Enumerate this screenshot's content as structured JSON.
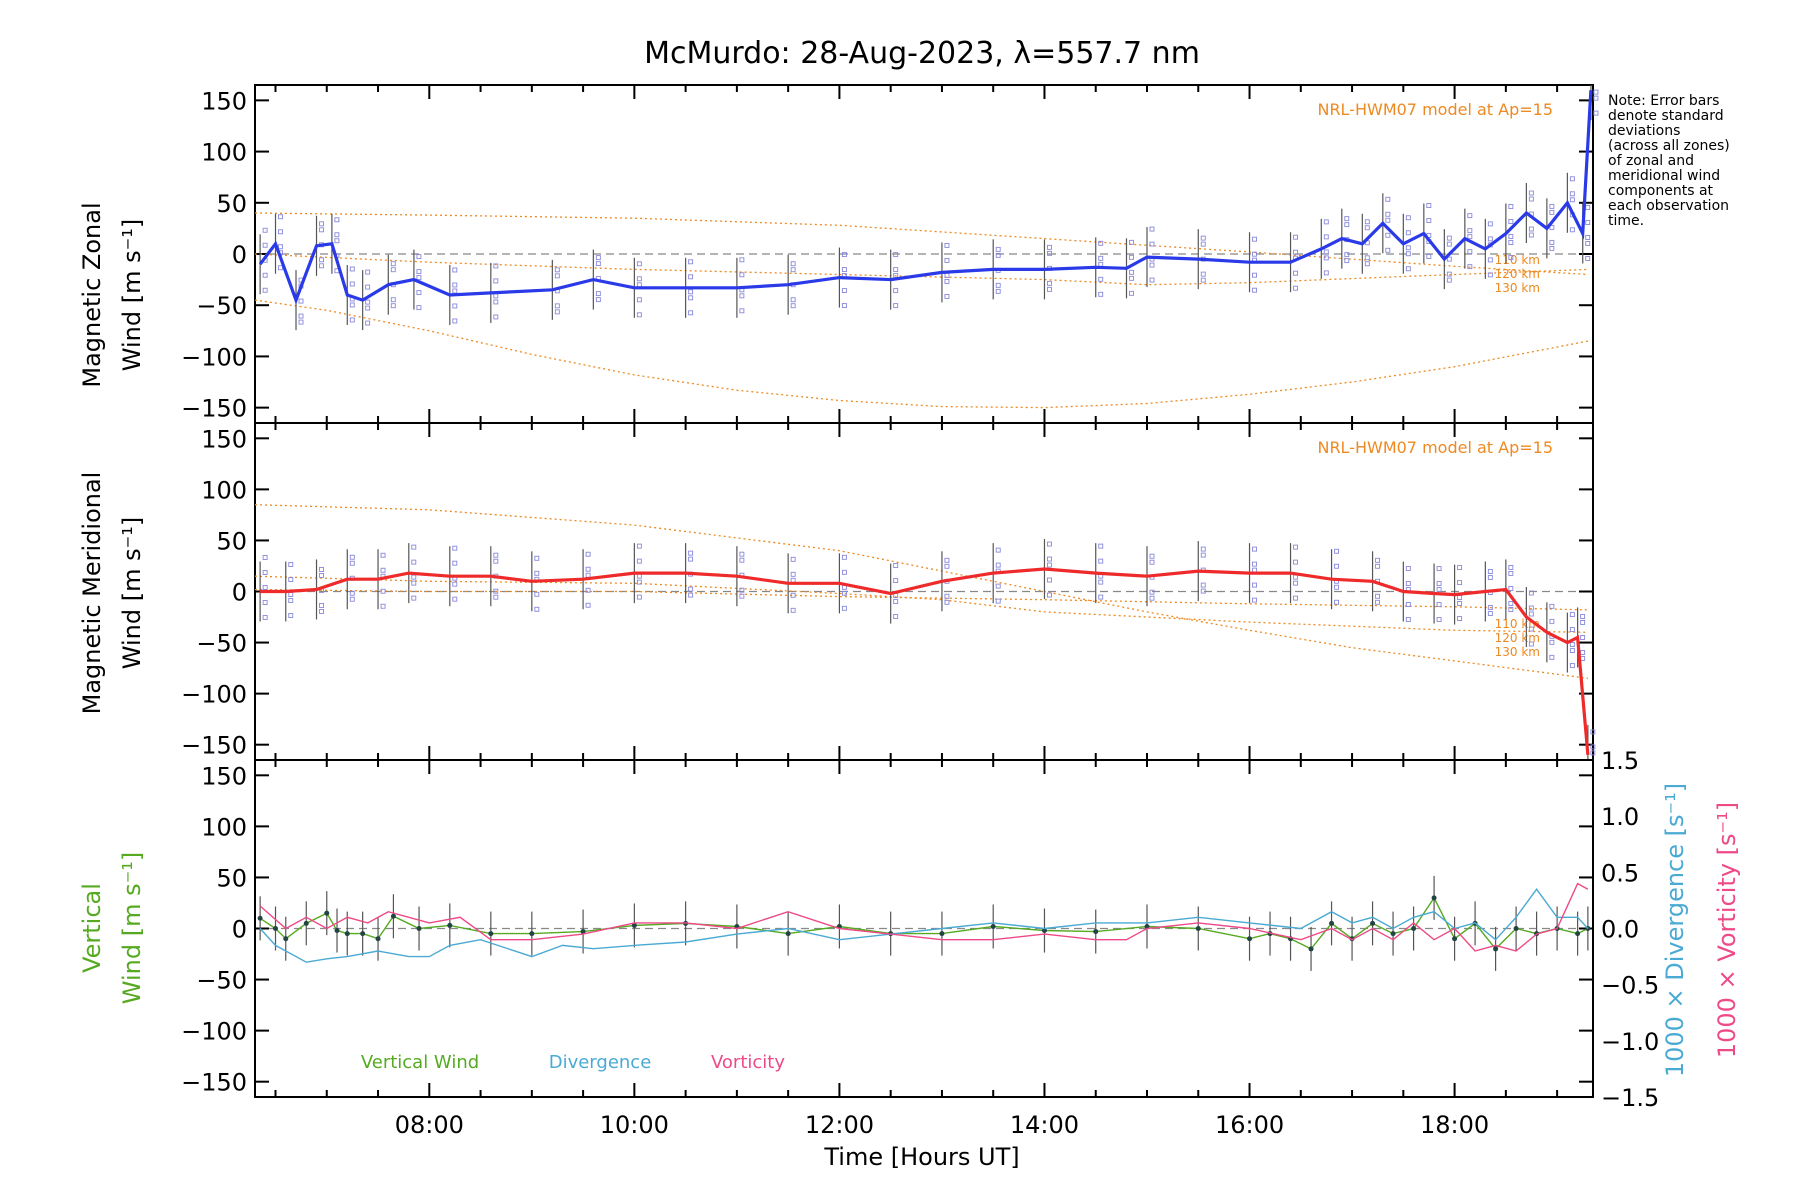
{
  "chart_data": [
    {
      "id": "zonal",
      "type": "line",
      "title": "McMurdo: 28-Aug-2023, λ=557.7 nm",
      "ylabel_line1": "Magnetic Zonal",
      "ylabel_line2": "Wind [m s⁻¹]",
      "ylim": [
        -165,
        165
      ],
      "yticks": [
        150,
        100,
        50,
        0,
        -50,
        -100,
        -150
      ],
      "model_label": "NRL-HWM07 model at Ap=15",
      "model_altitudes": [
        "110 km",
        "120 km",
        "130 km"
      ],
      "color": "#2a3ae8",
      "series": [
        {
          "name": "Magnetic Zonal Wind",
          "x": [
            6.35,
            6.5,
            6.7,
            6.9,
            7.05,
            7.2,
            7.35,
            7.6,
            7.85,
            8.2,
            8.6,
            9.2,
            9.6,
            10.0,
            10.5,
            11.0,
            11.5,
            12.0,
            12.5,
            13.0,
            13.5,
            14.0,
            14.5,
            14.8,
            15.0,
            15.5,
            16.0,
            16.4,
            16.7,
            16.9,
            17.1,
            17.3,
            17.5,
            17.7,
            17.9,
            18.1,
            18.3,
            18.5,
            18.7,
            18.9,
            19.1,
            19.25,
            19.33
          ],
          "y": [
            -10,
            10,
            -45,
            8,
            10,
            -40,
            -45,
            -30,
            -25,
            -40,
            -38,
            -35,
            -25,
            -33,
            -33,
            -33,
            -30,
            -23,
            -25,
            -18,
            -15,
            -15,
            -13,
            -14,
            -3,
            -5,
            -8,
            -8,
            5,
            15,
            10,
            30,
            10,
            20,
            -5,
            15,
            5,
            20,
            40,
            25,
            50,
            20,
            160
          ]
        }
      ]
    },
    {
      "id": "meridional",
      "type": "line",
      "ylabel_line1": "Magnetic Meridional",
      "ylabel_line2": "Wind [m s⁻¹]",
      "ylim": [
        -165,
        165
      ],
      "yticks": [
        150,
        100,
        50,
        0,
        -50,
        -100,
        -150
      ],
      "model_label": "NRL-HWM07 model at Ap=15",
      "model_altitudes": [
        "110 km",
        "120 km",
        "130 km"
      ],
      "color": "#ee2a2a",
      "series": [
        {
          "name": "Magnetic Meridional Wind",
          "x": [
            6.35,
            6.6,
            6.9,
            7.2,
            7.5,
            7.8,
            8.2,
            8.6,
            9.0,
            9.5,
            10.0,
            10.5,
            11.0,
            11.5,
            12.0,
            12.5,
            13.0,
            13.5,
            14.0,
            14.5,
            15.0,
            15.5,
            16.0,
            16.4,
            16.8,
            17.2,
            17.5,
            17.8,
            18.0,
            18.3,
            18.5,
            18.7,
            18.9,
            19.1,
            19.2,
            19.3
          ],
          "y": [
            0,
            0,
            2,
            12,
            12,
            18,
            15,
            15,
            10,
            12,
            18,
            18,
            15,
            8,
            8,
            -2,
            10,
            18,
            22,
            18,
            15,
            20,
            18,
            18,
            12,
            10,
            0,
            -2,
            -3,
            0,
            2,
            -25,
            -40,
            -50,
            -45,
            -160
          ]
        }
      ]
    },
    {
      "id": "vertical",
      "type": "line",
      "ylabel_line1": "Vertical",
      "ylabel_line2": "Wind [m s⁻¹]",
      "ylim": [
        -165,
        165
      ],
      "yticks": [
        150,
        100,
        50,
        0,
        -50,
        -100,
        -150
      ],
      "y2label_1": "1000 × Divergence [s⁻¹]",
      "y2label_2": "1000 × Vorticity [s⁻¹]",
      "y2lim": [
        -1.5,
        1.5
      ],
      "y2ticks": [
        1.5,
        1.0,
        0.5,
        0.0,
        -0.5,
        -1.0,
        -1.5
      ],
      "legend": [
        "Vertical Wind",
        "Divergence",
        "Vorticity"
      ],
      "series": [
        {
          "name": "Vertical Wind",
          "color": "#55aa22",
          "x": [
            6.35,
            6.5,
            6.6,
            6.8,
            7.0,
            7.1,
            7.2,
            7.35,
            7.5,
            7.65,
            7.9,
            8.2,
            8.6,
            9.0,
            9.5,
            10.0,
            10.5,
            11.0,
            11.5,
            12.0,
            12.5,
            13.0,
            13.5,
            14.0,
            14.5,
            15.0,
            15.5,
            16.0,
            16.2,
            16.4,
            16.6,
            16.8,
            17.0,
            17.2,
            17.4,
            17.6,
            17.8,
            18.0,
            18.2,
            18.4,
            18.6,
            18.8,
            19.0,
            19.2,
            19.3
          ],
          "y": [
            10,
            0,
            -10,
            5,
            15,
            -2,
            -5,
            -5,
            -10,
            12,
            0,
            3,
            -5,
            -5,
            -3,
            3,
            5,
            2,
            -5,
            2,
            -5,
            -5,
            2,
            -2,
            -3,
            2,
            0,
            -10,
            -5,
            -10,
            -20,
            5,
            -10,
            5,
            -5,
            0,
            30,
            -10,
            5,
            -20,
            0,
            -5,
            0,
            -5,
            0
          ]
        },
        {
          "name": "Divergence",
          "color": "#4aaad4",
          "x": [
            6.35,
            6.5,
            6.6,
            6.8,
            7.0,
            7.2,
            7.5,
            7.8,
            8.0,
            8.2,
            8.5,
            9.0,
            9.3,
            9.6,
            10.0,
            10.5,
            11.0,
            11.5,
            12.0,
            12.5,
            13.0,
            13.5,
            14.0,
            14.5,
            15.0,
            15.5,
            16.0,
            16.5,
            16.8,
            17.0,
            17.2,
            17.4,
            17.6,
            17.8,
            18.0,
            18.2,
            18.4,
            18.6,
            18.8,
            19.0,
            19.2,
            19.3
          ],
          "y": [
            0.0,
            -0.15,
            -0.2,
            -0.3,
            -0.27,
            -0.25,
            -0.2,
            -0.25,
            -0.25,
            -0.15,
            -0.1,
            -0.25,
            -0.15,
            -0.18,
            -0.15,
            -0.12,
            -0.05,
            0.0,
            -0.1,
            -0.05,
            0.0,
            0.05,
            0.0,
            0.05,
            0.05,
            0.1,
            0.05,
            0.0,
            0.15,
            0.05,
            0.1,
            0.0,
            0.1,
            0.15,
            0.0,
            0.05,
            -0.1,
            0.1,
            0.35,
            0.1,
            0.1,
            0.0
          ]
        },
        {
          "name": "Vorticity",
          "color": "#ee4a88",
          "x": [
            6.35,
            6.6,
            6.8,
            7.0,
            7.2,
            7.4,
            7.6,
            7.8,
            8.0,
            8.3,
            8.6,
            9.0,
            9.5,
            10.0,
            10.5,
            11.0,
            11.5,
            12.0,
            12.5,
            13.0,
            13.5,
            14.0,
            14.5,
            14.8,
            15.0,
            15.5,
            16.0,
            16.5,
            16.8,
            17.0,
            17.2,
            17.4,
            17.6,
            17.8,
            18.0,
            18.2,
            18.4,
            18.6,
            18.8,
            19.0,
            19.2,
            19.3
          ],
          "y": [
            0.2,
            0.0,
            0.1,
            0.0,
            0.1,
            0.05,
            0.15,
            0.1,
            0.05,
            0.1,
            -0.1,
            -0.1,
            -0.05,
            0.05,
            0.05,
            0.0,
            0.15,
            0.0,
            -0.05,
            -0.1,
            -0.1,
            -0.05,
            -0.1,
            -0.1,
            0.0,
            0.05,
            0.0,
            -0.1,
            0.0,
            -0.1,
            0.0,
            -0.1,
            0.05,
            -0.1,
            0.0,
            -0.2,
            -0.15,
            -0.2,
            -0.05,
            0.0,
            0.4,
            0.35
          ]
        }
      ]
    }
  ],
  "shared_x": {
    "xlabel": "Time [Hours UT]",
    "xlim": [
      6.3,
      19.35
    ],
    "xticks": [
      8,
      10,
      12,
      14,
      16,
      18
    ],
    "xticklabels": [
      "08:00",
      "10:00",
      "12:00",
      "14:00",
      "16:00",
      "18:00"
    ]
  },
  "note_lines": [
    "Note: Error bars",
    "denote standard",
    "deviations",
    "(across all zones)",
    "of zonal and",
    "meridional wind",
    "components at",
    "each observation",
    "time."
  ],
  "colors": {
    "model": "#ee8a22",
    "zone_points": "#8888dd",
    "zero_line": "#888888"
  }
}
